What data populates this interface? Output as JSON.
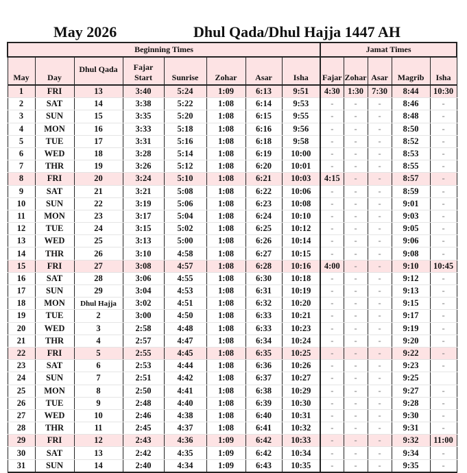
{
  "title": {
    "month": "May 2026",
    "hijri": "Dhul Qada/Dhul Hajja 1447 AH"
  },
  "header": {
    "beginning_times": "Beginning Times",
    "jamat_times": "Jamat Times",
    "columns": {
      "may": "May",
      "day": "Day",
      "dhul_qada": "Dhul Qada",
      "fajar": "Fajar",
      "start": "Start",
      "sunrise": "Sunrise",
      "zohar": "Zohar",
      "asar": "Asar",
      "isha": "Isha",
      "j_fajar": "Fajar",
      "j_zohar": "Zohar",
      "j_asar": "Asar",
      "j_magrib": "Magrib",
      "j_isha": "Isha"
    }
  },
  "highlight_color": "#fde3e4",
  "rows": [
    [
      "1",
      "FRI",
      "13",
      "3:40",
      "5:24",
      "1:09",
      "6:13",
      "9:51",
      "4:30",
      "1:30",
      "7:30",
      "8:44",
      "10:30"
    ],
    [
      "2",
      "SAT",
      "14",
      "3:38",
      "5:22",
      "1:08",
      "6:14",
      "9:53",
      "-",
      "-",
      "-",
      "8:46",
      "-"
    ],
    [
      "3",
      "SUN",
      "15",
      "3:35",
      "5:20",
      "1:08",
      "6:15",
      "9:55",
      "-",
      "-",
      "-",
      "8:48",
      "-"
    ],
    [
      "4",
      "MON",
      "16",
      "3:33",
      "5:18",
      "1:08",
      "6:16",
      "9:56",
      "-",
      "-",
      "-",
      "8:50",
      "-"
    ],
    [
      "5",
      "TUE",
      "17",
      "3:31",
      "5:16",
      "1:08",
      "6:18",
      "9:58",
      "-",
      "-",
      "-",
      "8:52",
      "-"
    ],
    [
      "6",
      "WED",
      "18",
      "3:28",
      "5:14",
      "1:08",
      "6:19",
      "10:00",
      "-",
      "-",
      "-",
      "8:53",
      "-"
    ],
    [
      "7",
      "THR",
      "19",
      "3:26",
      "5:12",
      "1:08",
      "6:20",
      "10:01",
      "-",
      "-",
      "-",
      "8:55",
      "-"
    ],
    [
      "8",
      "FRI",
      "20",
      "3:24",
      "5:10",
      "1:08",
      "6:21",
      "10:03",
      "4:15",
      "-",
      "-",
      "8:57",
      "-"
    ],
    [
      "9",
      "SAT",
      "21",
      "3:21",
      "5:08",
      "1:08",
      "6:22",
      "10:06",
      "-",
      "-",
      "-",
      "8:59",
      "-"
    ],
    [
      "10",
      "SUN",
      "22",
      "3:19",
      "5:06",
      "1:08",
      "6:23",
      "10:08",
      "-",
      "-",
      "-",
      "9:01",
      "-"
    ],
    [
      "11",
      "MON",
      "23",
      "3:17",
      "5:04",
      "1:08",
      "6:24",
      "10:10",
      "-",
      "-",
      "-",
      "9:03",
      "-"
    ],
    [
      "12",
      "TUE",
      "24",
      "3:15",
      "5:02",
      "1:08",
      "6:25",
      "10:12",
      "-",
      "-",
      "-",
      "9:05",
      "-"
    ],
    [
      "13",
      "WED",
      "25",
      "3:13",
      "5:00",
      "1:08",
      "6:26",
      "10:14",
      "-",
      "-",
      "-",
      "9:06",
      "-"
    ],
    [
      "14",
      "THR",
      "26",
      "3:10",
      "4:58",
      "1:08",
      "6:27",
      "10:15",
      "-",
      "-",
      "-",
      "9:08",
      "-"
    ],
    [
      "15",
      "FRI",
      "27",
      "3:08",
      "4:57",
      "1:08",
      "6:28",
      "10:16",
      "4:00",
      "-",
      "-",
      "9:10",
      "10:45"
    ],
    [
      "16",
      "SAT",
      "28",
      "3:06",
      "4:55",
      "1:08",
      "6:30",
      "10:18",
      "-",
      "-",
      "-",
      "9:12",
      "-"
    ],
    [
      "17",
      "SUN",
      "29",
      "3:04",
      "4:53",
      "1:08",
      "6:31",
      "10:19",
      "-",
      "-",
      "-",
      "9:13",
      "-"
    ],
    [
      "18",
      "MON",
      "Dhul Hajja",
      "3:02",
      "4:51",
      "1:08",
      "6:32",
      "10:20",
      "-",
      "-",
      "-",
      "9:15",
      "-"
    ],
    [
      "19",
      "TUE",
      "2",
      "3:00",
      "4:50",
      "1:08",
      "6:33",
      "10:21",
      "-",
      "-",
      "-",
      "9:17",
      "-"
    ],
    [
      "20",
      "WED",
      "3",
      "2:58",
      "4:48",
      "1:08",
      "6:33",
      "10:23",
      "-",
      "-",
      "-",
      "9:19",
      "-"
    ],
    [
      "21",
      "THR",
      "4",
      "2:57",
      "4:47",
      "1:08",
      "6:34",
      "10:24",
      "-",
      "-",
      "-",
      "9:20",
      "-"
    ],
    [
      "22",
      "FRI",
      "5",
      "2:55",
      "4:45",
      "1:08",
      "6:35",
      "10:25",
      "-",
      "-",
      "-",
      "9:22",
      "-"
    ],
    [
      "23",
      "SAT",
      "6",
      "2:53",
      "4:44",
      "1:08",
      "6:36",
      "10:26",
      "-",
      "-",
      "-",
      "9:23",
      "-"
    ],
    [
      "24",
      "SUN",
      "7",
      "2:51",
      "4:42",
      "1:08",
      "6:37",
      "10:27",
      "-",
      "-",
      "-",
      "9:25",
      ""
    ],
    [
      "25",
      "MON",
      "8",
      "2:50",
      "4:41",
      "1:08",
      "6:38",
      "10:29",
      "-",
      "-",
      "-",
      "9:27",
      "-"
    ],
    [
      "26",
      "TUE",
      "9",
      "2:48",
      "4:40",
      "1:08",
      "6:39",
      "10:30",
      "-",
      "-",
      "-",
      "9:28",
      "-"
    ],
    [
      "27",
      "WED",
      "10",
      "2:46",
      "4:38",
      "1:08",
      "6:40",
      "10:31",
      "-",
      "-",
      "-",
      "9:30",
      "-"
    ],
    [
      "28",
      "THR",
      "11",
      "2:45",
      "4:37",
      "1:08",
      "6:41",
      "10:32",
      "-",
      "-",
      "-",
      "9:31",
      "-"
    ],
    [
      "29",
      "FRI",
      "12",
      "2:43",
      "4:36",
      "1:09",
      "6:42",
      "10:33",
      "-",
      "-",
      "-",
      "9:32",
      "11:00"
    ],
    [
      "30",
      "SAT",
      "13",
      "2:42",
      "4:35",
      "1:09",
      "6:42",
      "10:34",
      "-",
      "-",
      "-",
      "9:34",
      "-"
    ],
    [
      "31",
      "SUN",
      "14",
      "2:40",
      "4:34",
      "1:09",
      "6:43",
      "10:35",
      "-",
      "-",
      "-",
      "9:35",
      "-"
    ]
  ]
}
